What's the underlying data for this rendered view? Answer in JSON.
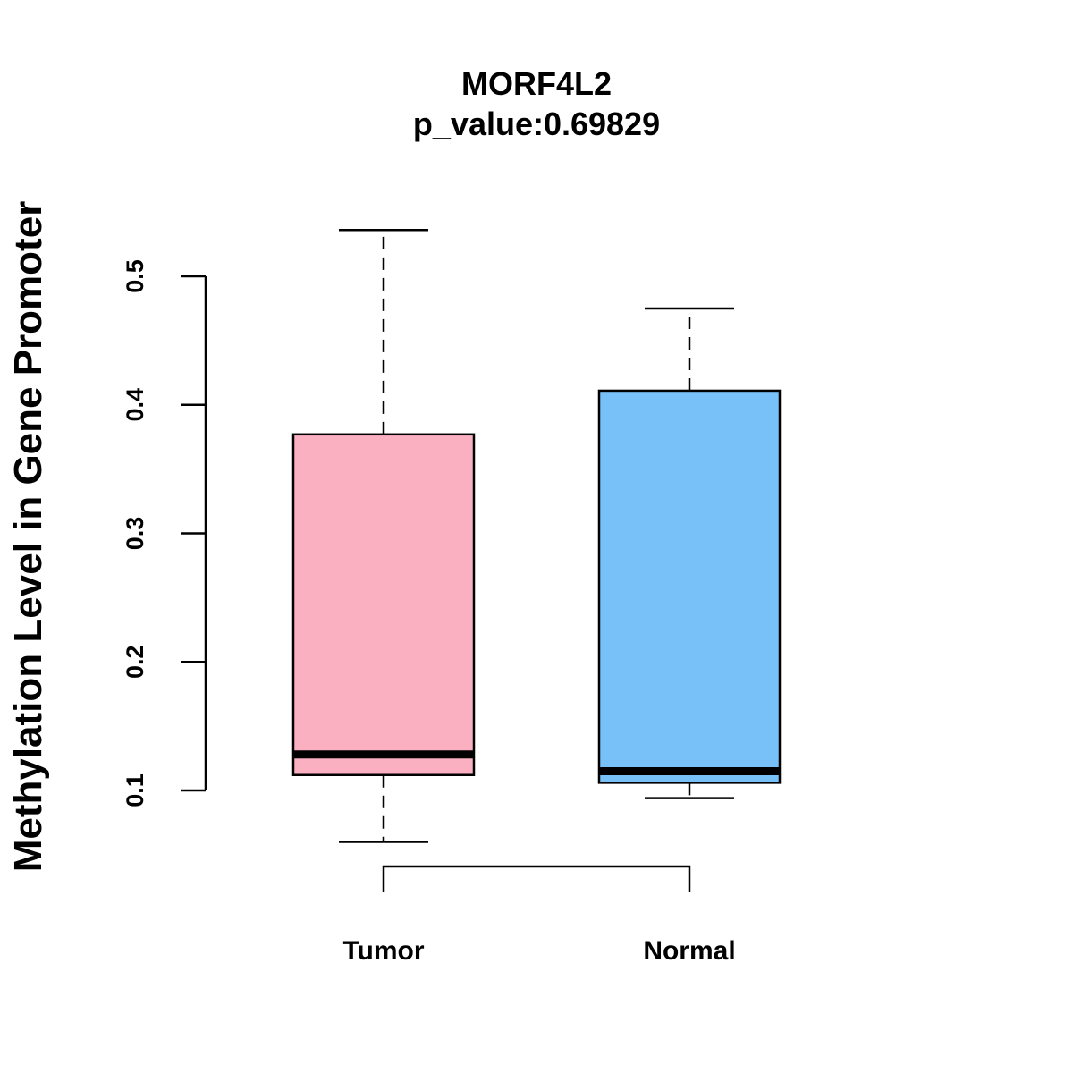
{
  "chart_data": {
    "type": "box",
    "title": "MORF4L2",
    "subtitle": "p_value:0.69829",
    "xlabel": "",
    "ylabel": "Methylation Level in Gene Promoter",
    "categories": [
      "Tumor",
      "Normal"
    ],
    "yticks": [
      0.1,
      0.2,
      0.3,
      0.4,
      0.5
    ],
    "ytick_labels": [
      "0.1",
      "0.2",
      "0.3",
      "0.4",
      "0.5"
    ],
    "ylim": [
      0.1,
      0.5
    ],
    "boxes": [
      {
        "name": "Tumor",
        "whisker_low": 0.06,
        "q1": 0.112,
        "median": 0.128,
        "q3": 0.377,
        "whisker_high": 0.536,
        "color": "#FBB0C2"
      },
      {
        "name": "Normal",
        "whisker_low": 0.094,
        "q1": 0.106,
        "median": 0.115,
        "q3": 0.411,
        "whisker_high": 0.475,
        "color": "#78C0F8"
      }
    ],
    "comparison_bracket": {
      "from": "Tumor",
      "to": "Normal"
    }
  }
}
